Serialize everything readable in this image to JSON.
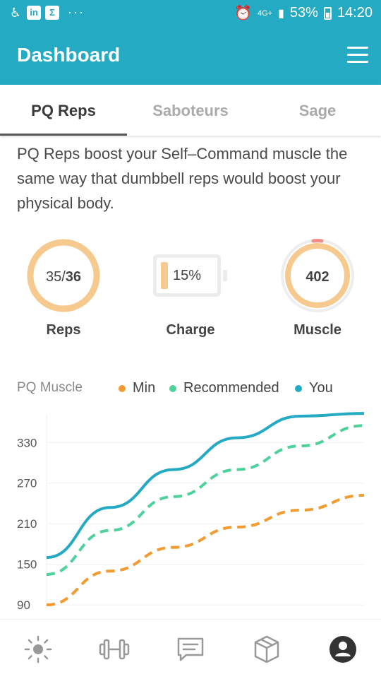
{
  "status_bar": {
    "network": "4G+",
    "battery": "53%",
    "time": "14:20"
  },
  "header": {
    "title": "Dashboard"
  },
  "tabs": [
    {
      "label": "PQ Reps",
      "active": true
    },
    {
      "label": "Saboteurs",
      "active": false
    },
    {
      "label": "Sage",
      "active": false
    }
  ],
  "intro_text": "PQ Reps boost your Self–Command muscle the same way that dumbbell reps would boost your physical body.",
  "stats": {
    "reps": {
      "done": "35",
      "total": "36",
      "separator": "/",
      "label": "Reps",
      "fraction": 0.972
    },
    "charge": {
      "value": "15%",
      "label": "Charge",
      "fraction": 0.15
    },
    "muscle": {
      "value": "402",
      "label": "Muscle"
    }
  },
  "colors": {
    "accent": "#25aac4",
    "ring": "#f6c98f",
    "min": "#f29b30",
    "recommended": "#4fd19b",
    "you": "#25aac4"
  },
  "chart_data": {
    "type": "line",
    "title": "PQ Muscle",
    "ylabel": "",
    "xlabel": "",
    "yticks": [
      "330",
      "270",
      "210",
      "150",
      "90"
    ],
    "ytick_values": [
      330,
      270,
      210,
      150,
      90
    ],
    "ylim": [
      88,
      370
    ],
    "x": [
      0,
      1,
      2,
      3,
      4,
      5
    ],
    "legend_position": "top",
    "series": [
      {
        "name": "Min",
        "style": "dashed",
        "color": "#f29b30",
        "values": [
          90,
          140,
          175,
          205,
          230,
          252
        ]
      },
      {
        "name": "Recommended",
        "style": "dashed",
        "color": "#4fd19b",
        "values": [
          135,
          200,
          250,
          290,
          325,
          355
        ]
      },
      {
        "name": "You",
        "style": "solid",
        "color": "#25aac4",
        "values": [
          160,
          234,
          290,
          337,
          369,
          373
        ]
      }
    ]
  },
  "bottom_nav": [
    {
      "icon": "sun-icon"
    },
    {
      "icon": "dumbbell-icon"
    },
    {
      "icon": "chat-icon"
    },
    {
      "icon": "box-icon"
    },
    {
      "icon": "profile-icon"
    }
  ]
}
